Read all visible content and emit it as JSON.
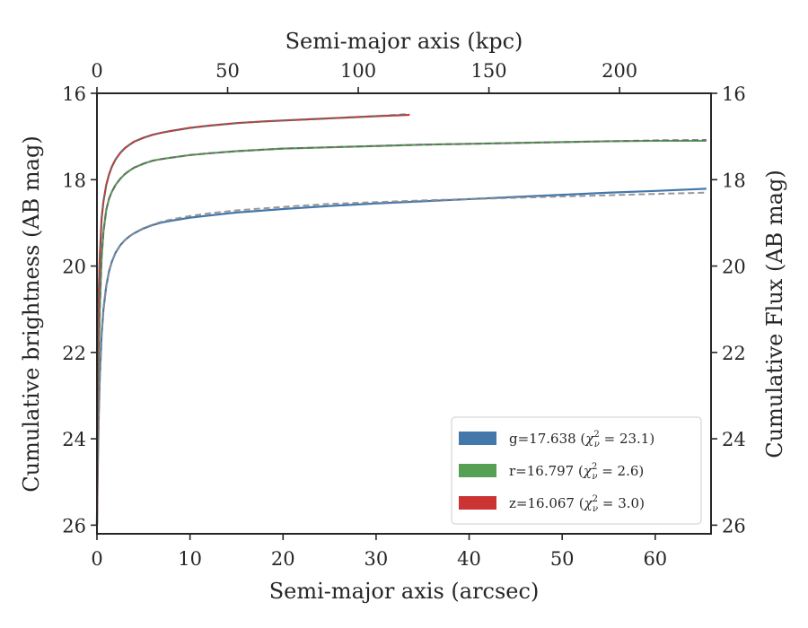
{
  "chart_data": {
    "type": "line",
    "title": "",
    "xlabel": "Semi-major axis (arcsec)",
    "ylabel": "Cumulative brightness (AB mag)",
    "x2label": "Semi-major axis (kpc)",
    "y2label": "Cumulative Flux (AB mag)",
    "xlim": [
      0,
      66
    ],
    "ylim": [
      26.2,
      16
    ],
    "x2lim": [
      0,
      235
    ],
    "y_inverted": true,
    "x_ticks": [
      0,
      10,
      20,
      30,
      40,
      50,
      60
    ],
    "y_ticks": [
      16,
      18,
      20,
      22,
      24,
      26
    ],
    "x2_ticks": [
      0,
      50,
      100,
      150,
      200
    ],
    "grid": false,
    "legend_position": "bottom-right",
    "series": [
      {
        "name": "g",
        "legend": {
          "prefix": "g=17.638 (",
          "chi": "χ",
          "sub": "ν",
          "sup": "2",
          "suffix": " = 23.1)"
        },
        "color": "#4477aa",
        "model_color": "#8c8c8c",
        "x": [
          0.0,
          0.1,
          0.2,
          0.3,
          0.5,
          0.7,
          1.0,
          1.3,
          1.6,
          2.0,
          2.5,
          3.0,
          3.5,
          4.0,
          5.0,
          6.0,
          7.0,
          8.0,
          10.0,
          12.0,
          15.0,
          20.0,
          25.0,
          30.0,
          35.0,
          40.0,
          45.0,
          50.0,
          55.0,
          60.0,
          65.5
        ],
        "y": [
          26.0,
          24.5,
          23.4,
          22.6,
          21.6,
          21.0,
          20.46,
          20.12,
          19.9,
          19.69,
          19.52,
          19.4,
          19.31,
          19.24,
          19.13,
          19.05,
          18.99,
          18.95,
          18.88,
          18.83,
          18.76,
          18.68,
          18.61,
          18.55,
          18.5,
          18.45,
          18.4,
          18.35,
          18.3,
          18.26,
          18.21
        ],
        "model_y": [
          26.0,
          24.5,
          23.4,
          22.6,
          21.6,
          21.0,
          20.46,
          20.12,
          19.9,
          19.69,
          19.52,
          19.4,
          19.31,
          19.24,
          19.12,
          19.04,
          18.97,
          18.92,
          18.84,
          18.78,
          18.71,
          18.63,
          18.56,
          18.52,
          18.48,
          18.45,
          18.42,
          18.39,
          18.36,
          18.33,
          18.3
        ]
      },
      {
        "name": "r",
        "legend": {
          "prefix": "r=16.797 (",
          "chi": "χ",
          "sub": "ν",
          "sup": "2",
          "suffix": " = 2.6)"
        },
        "color": "#55a055",
        "model_color": "#6a6a6a",
        "x": [
          0.0,
          0.1,
          0.2,
          0.3,
          0.5,
          0.7,
          1.0,
          1.3,
          1.6,
          2.0,
          2.5,
          3.0,
          3.5,
          4.0,
          5.0,
          6.0,
          7.0,
          8.0,
          10.0,
          12.0,
          15.0,
          20.0,
          25.0,
          30.0,
          35.0,
          40.0,
          45.0,
          50.0,
          55.0,
          60.0,
          65.5
        ],
        "y": [
          26.0,
          23.4,
          22.0,
          21.0,
          19.8,
          19.2,
          18.7,
          18.44,
          18.28,
          18.12,
          17.98,
          17.87,
          17.79,
          17.72,
          17.63,
          17.56,
          17.52,
          17.49,
          17.43,
          17.39,
          17.34,
          17.28,
          17.25,
          17.22,
          17.19,
          17.17,
          17.15,
          17.13,
          17.11,
          17.1,
          17.1
        ],
        "model_y": [
          26.0,
          23.4,
          22.0,
          21.0,
          19.8,
          19.2,
          18.7,
          18.44,
          18.28,
          18.12,
          17.98,
          17.87,
          17.79,
          17.72,
          17.63,
          17.56,
          17.52,
          17.49,
          17.43,
          17.39,
          17.34,
          17.28,
          17.25,
          17.22,
          17.19,
          17.17,
          17.15,
          17.13,
          17.11,
          17.09,
          17.08
        ]
      },
      {
        "name": "z",
        "legend": {
          "prefix": "z=16.067 (",
          "chi": "χ",
          "sub": "ν",
          "sup": "2",
          "suffix": " = 3.0)"
        },
        "color": "#cc3333",
        "model_color": "#6a6a6a",
        "x": [
          0.0,
          0.1,
          0.2,
          0.3,
          0.5,
          0.7,
          1.0,
          1.3,
          1.6,
          2.0,
          2.5,
          3.0,
          3.5,
          4.0,
          5.0,
          6.0,
          7.0,
          8.0,
          10.0,
          12.0,
          15.0,
          18.0,
          20.0,
          23.0,
          26.0,
          30.0,
          33.6
        ],
        "y": [
          26.0,
          21.8,
          20.6,
          19.8,
          18.9,
          18.5,
          18.12,
          17.88,
          17.7,
          17.53,
          17.38,
          17.27,
          17.19,
          17.12,
          17.03,
          16.96,
          16.91,
          16.87,
          16.8,
          16.75,
          16.69,
          16.65,
          16.63,
          16.6,
          16.57,
          16.53,
          16.5
        ],
        "model_y": [
          26.0,
          21.8,
          20.6,
          19.8,
          18.9,
          18.5,
          18.12,
          17.88,
          17.7,
          17.53,
          17.38,
          17.27,
          17.19,
          17.12,
          17.03,
          16.96,
          16.91,
          16.87,
          16.8,
          16.75,
          16.69,
          16.65,
          16.63,
          16.6,
          16.57,
          16.53,
          16.48
        ]
      }
    ]
  }
}
